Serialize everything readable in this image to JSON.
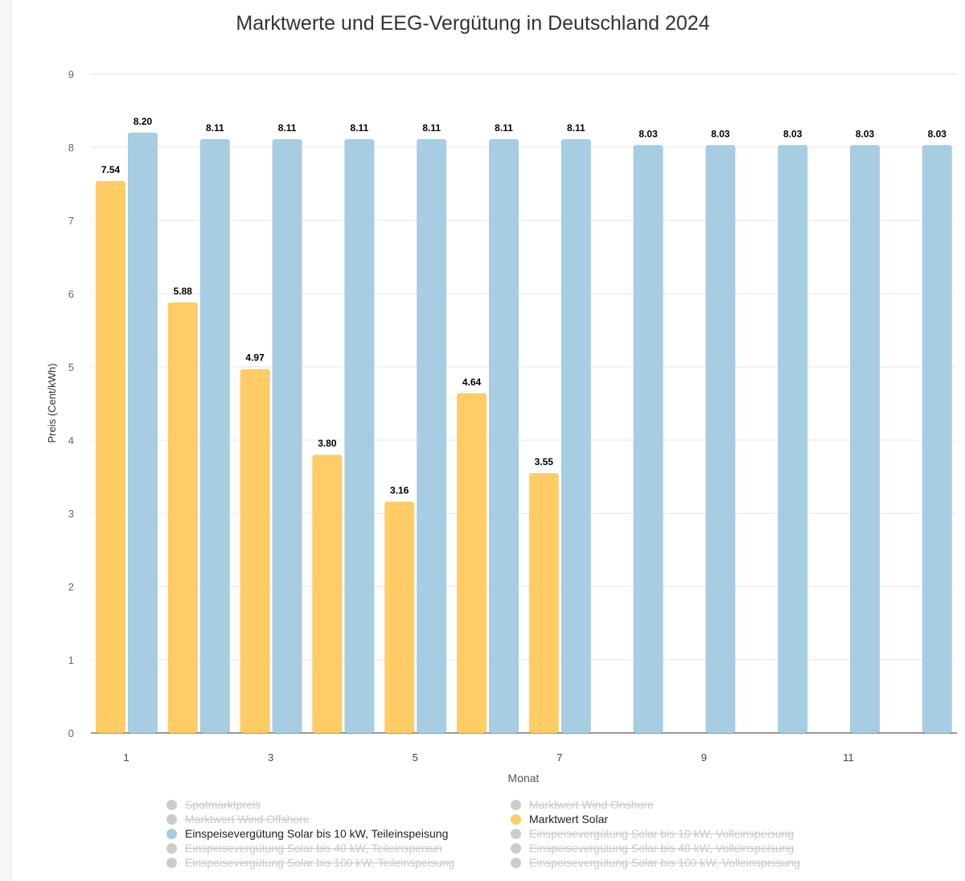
{
  "chart_data": {
    "type": "bar",
    "title": "Marktwerte und EEG-Vergütung in Deutschland 2024",
    "xlabel": "Monat",
    "ylabel": "Preis (Cent/kWh)",
    "ylim": [
      0,
      9
    ],
    "yticks": [
      0,
      1,
      2,
      3,
      4,
      5,
      6,
      7,
      8,
      9
    ],
    "categories": [
      1,
      2,
      3,
      4,
      5,
      6,
      7,
      8,
      9,
      10,
      11,
      12
    ],
    "xtick_labels": [
      "1",
      "3",
      "5",
      "7",
      "9",
      "11"
    ],
    "grid": true,
    "legend_position": "bottom",
    "series": [
      {
        "name": "Marktwert Solar",
        "color": "#ffcc66",
        "values": [
          7.54,
          5.88,
          4.97,
          3.8,
          3.16,
          4.64,
          3.55,
          null,
          null,
          null,
          null,
          null
        ]
      },
      {
        "name": "Einspeisevergütung Solar bis 10 kW, Teileinspeisung",
        "color": "#a6cde2",
        "values": [
          8.2,
          8.11,
          8.11,
          8.11,
          8.11,
          8.11,
          8.11,
          8.03,
          8.03,
          8.03,
          8.03,
          8.03
        ]
      }
    ],
    "legend": [
      {
        "label": "Spotmarktpreis",
        "visible": false
      },
      {
        "label": "Marktwert Wind Onshore",
        "visible": false
      },
      {
        "label": "Marktwert Wind Offshore",
        "visible": false
      },
      {
        "label": "Marktwert Solar",
        "visible": true,
        "color": "#ffcc66"
      },
      {
        "label": "Einspeisevergütung Solar bis 10 kW, Teileinspeisung",
        "visible": true,
        "color": "#a6cde2"
      },
      {
        "label": "Einspeisevergütung Solar bis 10 kW, Volleinspeisung",
        "visible": false
      },
      {
        "label": "Einspeisevergütung Solar bis 40 kW, Teileinspeisun",
        "visible": false
      },
      {
        "label": "Einspeisevergütung Solar bis 40 kW, Volleinspeisung",
        "visible": false
      },
      {
        "label": "Einspeisevergütung Solar bis 100 kW, Teileinspeisung",
        "visible": false
      },
      {
        "label": "Einspeisevergütung Solar bis 100 kW, Volleinspeisung",
        "visible": false
      }
    ]
  }
}
